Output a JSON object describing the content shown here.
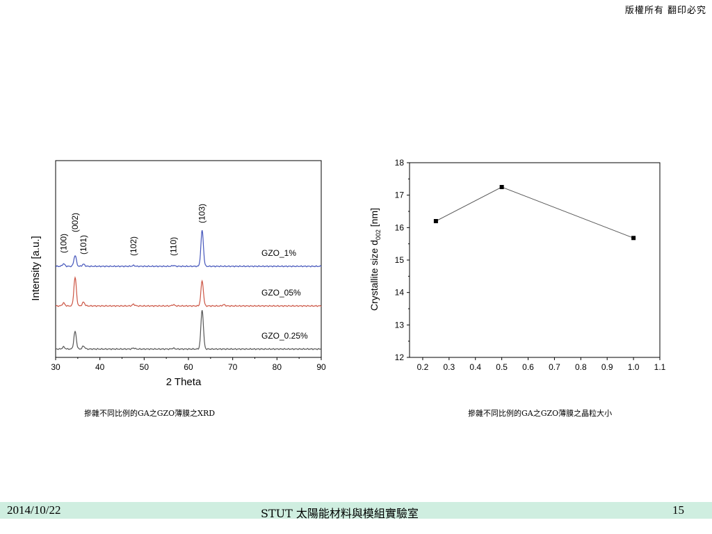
{
  "header": {
    "copyright": "版權所有  翻印必究"
  },
  "footer": {
    "date": "2014/10/22",
    "lab": "STUT 太陽能材料與模組實驗室",
    "page": "15"
  },
  "captions": {
    "xrd": "摻雜不同比例的GA之GZO薄膜之XRD",
    "crystallite": "摻雜不同比例的GA之GZO薄膜之晶粒大小"
  },
  "chart_data": [
    {
      "type": "line",
      "xlabel": "2 Theta",
      "ylabel": "Intensity [a.u.]",
      "xlim": [
        30,
        90
      ],
      "xticks": [
        30,
        40,
        50,
        60,
        70,
        80,
        90
      ],
      "peak_labels": [
        {
          "label": "(100)",
          "x": 31.8
        },
        {
          "label": "(002)",
          "x": 34.4
        },
        {
          "label": "(101)",
          "x": 36.3
        },
        {
          "label": "(102)",
          "x": 47.6
        },
        {
          "label": "(110)",
          "x": 56.6
        },
        {
          "label": "(103)",
          "x": 63.1
        }
      ],
      "series": [
        {
          "name": "GZO_1%",
          "color": "#4455bb",
          "peaks": [
            [
              31.8,
              0.3
            ],
            [
              34.4,
              1.3
            ],
            [
              36.3,
              0.25
            ],
            [
              47.6,
              0.1
            ],
            [
              56.6,
              0.1
            ],
            [
              63.1,
              4.3
            ]
          ]
        },
        {
          "name": "GZO_05%",
          "color": "#cc5544",
          "peaks": [
            [
              31.8,
              0.35
            ],
            [
              34.4,
              3.4
            ],
            [
              36.3,
              0.45
            ],
            [
              47.6,
              0.2
            ],
            [
              56.6,
              0.15
            ],
            [
              63.1,
              3.0
            ],
            [
              68.0,
              0.15
            ]
          ]
        },
        {
          "name": "GZO_0.25%",
          "color": "#555555",
          "peaks": [
            [
              31.8,
              0.25
            ],
            [
              34.4,
              2.1
            ],
            [
              36.3,
              0.35
            ],
            [
              47.6,
              0.12
            ],
            [
              56.6,
              0.1
            ],
            [
              63.1,
              4.7
            ]
          ]
        }
      ]
    },
    {
      "type": "line",
      "xlabel": "",
      "ylabel": "Crystallite size d002 [nm]",
      "ylabel_main": "Crystallite size d",
      "ylabel_sub": "002",
      "ylabel_unit": " [nm]",
      "xlim": [
        0.15,
        1.1
      ],
      "ylim": [
        12,
        18
      ],
      "xticks": [
        0.2,
        0.3,
        0.4,
        0.5,
        0.6,
        0.7,
        0.8,
        0.9,
        1.0,
        1.1
      ],
      "yticks": [
        12,
        13,
        14,
        15,
        16,
        17,
        18
      ],
      "points": [
        {
          "x": 0.25,
          "y": 16.2
        },
        {
          "x": 0.5,
          "y": 17.25
        },
        {
          "x": 1.0,
          "y": 15.68
        }
      ]
    }
  ]
}
